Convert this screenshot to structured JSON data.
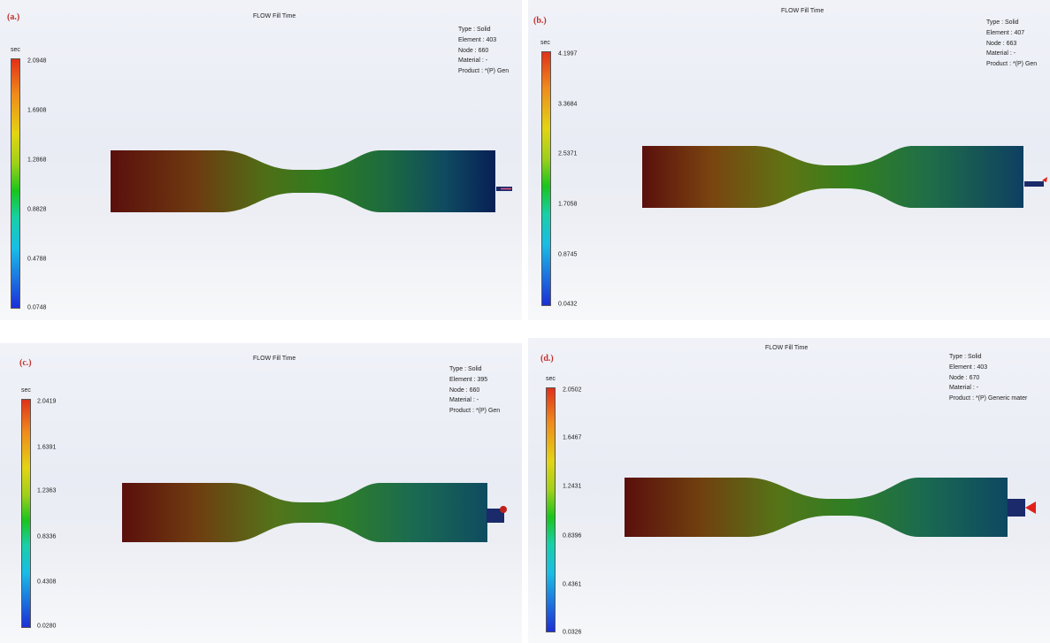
{
  "panels": [
    {
      "label": "(a.)",
      "title": "FLOW Fill Time",
      "unit": "sec",
      "scale": [
        "2.0948",
        "1.6908",
        "1.2868",
        "0.8828",
        "0.4788",
        "0.0748"
      ],
      "info": {
        "type": "Type : Solid",
        "element": "Element : 403",
        "node": "Node : 660",
        "material": "Material : -",
        "product": "Product :  *(P) Gen"
      }
    },
    {
      "label": "(b.)",
      "title": "FLOW Fill Time",
      "unit": "sec",
      "scale": [
        "4.1997",
        "3.3684",
        "2.5371",
        "1.7058",
        "0.8745",
        "0.0432"
      ],
      "info": {
        "type": "Type : Solid",
        "element": "Element : 407",
        "node": "Node : 663",
        "material": "Material : -",
        "product": "Product :  *(P) Gen"
      }
    },
    {
      "label": "(c.)",
      "title": "FLOW Fill Time",
      "unit": "sec",
      "scale": [
        "2.0419",
        "1.6391",
        "1.2363",
        "0.8336",
        "0.4308",
        "0.0280"
      ],
      "info": {
        "type": "Type : Solid",
        "element": "Element : 395",
        "node": "Node : 660",
        "material": "Material : -",
        "product": "Product :  *(P) Gen"
      }
    },
    {
      "label": "(d.)",
      "title": "FLOW Fill Time",
      "unit": "sec",
      "scale": [
        "2.0502",
        "1.6467",
        "1.2431",
        "0.8396",
        "0.4361",
        "0.0326"
      ],
      "info": {
        "type": "Type : Solid",
        "element": "Element : 403",
        "node": "Node : 670",
        "material": "Material : -",
        "product": "Product :  *(P) Generic mater"
      }
    }
  ],
  "colors": {
    "fill_hot": "#5a0f0c",
    "fill_mid": "#3f8a1c",
    "fill_cold": "#071f55",
    "gate": "#1a2a6a",
    "gate_marker": "#e0201a"
  }
}
